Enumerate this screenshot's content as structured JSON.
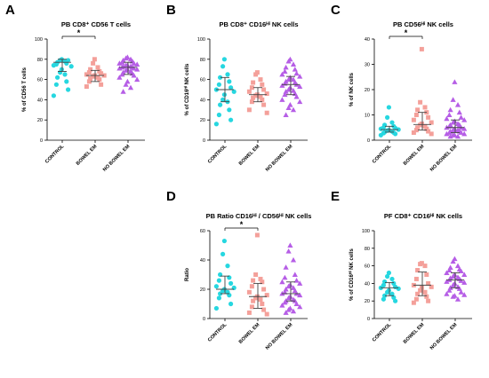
{
  "colors": {
    "control": "#26d7e0",
    "bowel_em": "#f4a09a",
    "no_bowel_em": "#b65ee6"
  },
  "chart_data": [
    {
      "panel": "A",
      "type": "scatter",
      "title": "PB CD8⁺ CD56 T cells",
      "ylabel": "% of CD56 T cells",
      "ylim": [
        0,
        100
      ],
      "yticks": [
        0,
        20,
        40,
        60,
        80,
        100
      ],
      "categories": [
        "CONTROL",
        "BOWEL EM",
        "NO BOWEL EM"
      ],
      "significance": [
        {
          "from": 0,
          "to": 1,
          "label": "*"
        }
      ],
      "series": [
        {
          "values": [
            80,
            79,
            78,
            77,
            76,
            75,
            79,
            74,
            73,
            70,
            67,
            65,
            62,
            58,
            55,
            50,
            44
          ],
          "median": 77,
          "iqr": [
            68,
            80
          ]
        },
        {
          "values": [
            80,
            76,
            72,
            70,
            68,
            67,
            66,
            65,
            64,
            64,
            63,
            62,
            61,
            60,
            58,
            55,
            53
          ],
          "median": 64,
          "iqr": [
            58,
            69
          ]
        },
        {
          "values": [
            82,
            81,
            80,
            79,
            78,
            77,
            76,
            76,
            75,
            74,
            74,
            73,
            73,
            72,
            72,
            71,
            71,
            70,
            70,
            69,
            68,
            67,
            66,
            65,
            64,
            62,
            60,
            58,
            55,
            52,
            48
          ],
          "median": 72,
          "iqr": [
            65,
            77
          ]
        }
      ]
    },
    {
      "panel": "B",
      "type": "scatter",
      "title": "PB CD8⁺ CD16ᴴⁱ NK cells",
      "ylabel": "% of CD16ᴴⁱ NK cells",
      "ylim": [
        0,
        100
      ],
      "yticks": [
        0,
        20,
        40,
        60,
        80,
        100
      ],
      "categories": [
        "CONTROL",
        "BOWEL EM",
        "NO BOWEL EM"
      ],
      "significance": [],
      "series": [
        {
          "values": [
            80,
            73,
            65,
            62,
            58,
            55,
            52,
            50,
            48,
            45,
            40,
            38,
            35,
            30,
            25,
            20,
            16
          ],
          "median": 50,
          "iqr": [
            38,
            62
          ]
        },
        {
          "values": [
            67,
            65,
            60,
            57,
            55,
            52,
            50,
            48,
            46,
            45,
            44,
            43,
            42,
            40,
            38,
            35,
            30,
            27
          ],
          "median": 45,
          "iqr": [
            38,
            52
          ]
        },
        {
          "values": [
            80,
            78,
            75,
            72,
            70,
            68,
            66,
            65,
            63,
            62,
            60,
            60,
            58,
            57,
            56,
            55,
            54,
            53,
            52,
            50,
            49,
            48,
            46,
            45,
            43,
            40,
            38,
            35,
            32,
            30,
            25
          ],
          "median": 55,
          "iqr": [
            45,
            63
          ]
        }
      ]
    },
    {
      "panel": "C",
      "type": "scatter",
      "title": "PB CD56ᴴⁱ NK cells",
      "ylabel": "% of NK cells",
      "ylim": [
        0,
        40
      ],
      "yticks": [
        0,
        10,
        20,
        30,
        40
      ],
      "categories": [
        "CONTROL",
        "BOWEL EM",
        "NO BOWEL EM"
      ],
      "significance": [
        {
          "from": 0,
          "to": 1,
          "label": "*"
        }
      ],
      "series": [
        {
          "values": [
            13,
            9,
            7,
            6,
            5.5,
            5,
            4.8,
            4.5,
            4.2,
            4,
            3.8,
            3.5,
            3.2,
            3,
            2.8,
            2.5,
            2
          ],
          "median": 4.2,
          "iqr": [
            3.2,
            5.5
          ]
        },
        {
          "values": [
            36,
            15,
            13,
            12,
            11,
            10,
            9,
            8,
            7,
            6.5,
            6,
            5.5,
            5,
            4.5,
            4,
            3.5,
            3,
            2.5
          ],
          "median": 6.2,
          "iqr": [
            4,
            11
          ]
        },
        {
          "values": [
            23,
            16,
            14,
            12,
            11,
            10,
            9,
            8.5,
            8,
            7.5,
            7,
            6.5,
            6,
            6,
            5.5,
            5,
            5,
            4.5,
            4.5,
            4,
            4,
            3.5,
            3.5,
            3,
            3,
            2.5,
            2.5,
            2,
            2,
            1.5,
            1.5
          ],
          "median": 5,
          "iqr": [
            3,
            8
          ]
        }
      ]
    },
    {
      "panel": "D",
      "type": "scatter",
      "title": "PB Ratio CD16ᴴⁱ / CD56ᴴⁱ NK cells",
      "ylabel": "Ratio",
      "ylim": [
        0,
        60
      ],
      "yticks": [
        0,
        20,
        40,
        60
      ],
      "categories": [
        "CONTROL",
        "BOWEL EM",
        "NO BOWEL EM"
      ],
      "significance": [
        {
          "from": 0,
          "to": 1,
          "label": "*"
        }
      ],
      "series": [
        {
          "values": [
            53,
            44,
            36,
            30,
            28,
            26,
            24,
            22,
            21,
            20,
            19,
            18,
            17,
            16,
            14,
            10,
            7
          ],
          "median": 20,
          "iqr": [
            17,
            29
          ]
        },
        {
          "values": [
            57,
            30,
            27,
            26,
            25,
            22,
            20,
            18,
            16,
            15,
            14,
            13,
            12,
            10,
            8,
            6,
            4,
            3
          ],
          "median": 15,
          "iqr": [
            7,
            24
          ]
        },
        {
          "values": [
            50,
            46,
            40,
            35,
            30,
            28,
            26,
            25,
            24,
            23,
            22,
            21,
            20,
            19,
            18,
            17,
            17,
            16,
            15,
            14,
            13,
            12,
            12,
            11,
            10,
            9,
            8,
            7,
            6,
            5,
            4
          ],
          "median": 17,
          "iqr": [
            12,
            25
          ]
        }
      ]
    },
    {
      "panel": "E",
      "type": "scatter",
      "title": "PF CD8⁺ CD16ᴴⁱ NK cells",
      "ylabel": "% of CD16ᴴⁱ NK cells",
      "ylim": [
        0,
        100
      ],
      "yticks": [
        0,
        20,
        40,
        60,
        80,
        100
      ],
      "categories": [
        "CONTROL",
        "BOWEL EM",
        "NO BOWEL EM"
      ],
      "significance": [],
      "series": [
        {
          "values": [
            52,
            48,
            45,
            42,
            40,
            38,
            36,
            35,
            34,
            32,
            30,
            28,
            26,
            24,
            22,
            20
          ],
          "median": 35,
          "iqr": [
            26,
            41
          ]
        },
        {
          "values": [
            63,
            62,
            60,
            55,
            50,
            45,
            40,
            38,
            36,
            35,
            32,
            30,
            28,
            25,
            22,
            20,
            18
          ],
          "median": 38,
          "iqr": [
            26,
            53
          ]
        },
        {
          "values": [
            68,
            65,
            60,
            58,
            56,
            55,
            54,
            52,
            50,
            50,
            48,
            47,
            46,
            45,
            44,
            43,
            42,
            41,
            40,
            38,
            36,
            35,
            34,
            32,
            30,
            28,
            27,
            26,
            25,
            22
          ],
          "median": 44,
          "iqr": [
            35,
            52
          ]
        }
      ]
    }
  ]
}
